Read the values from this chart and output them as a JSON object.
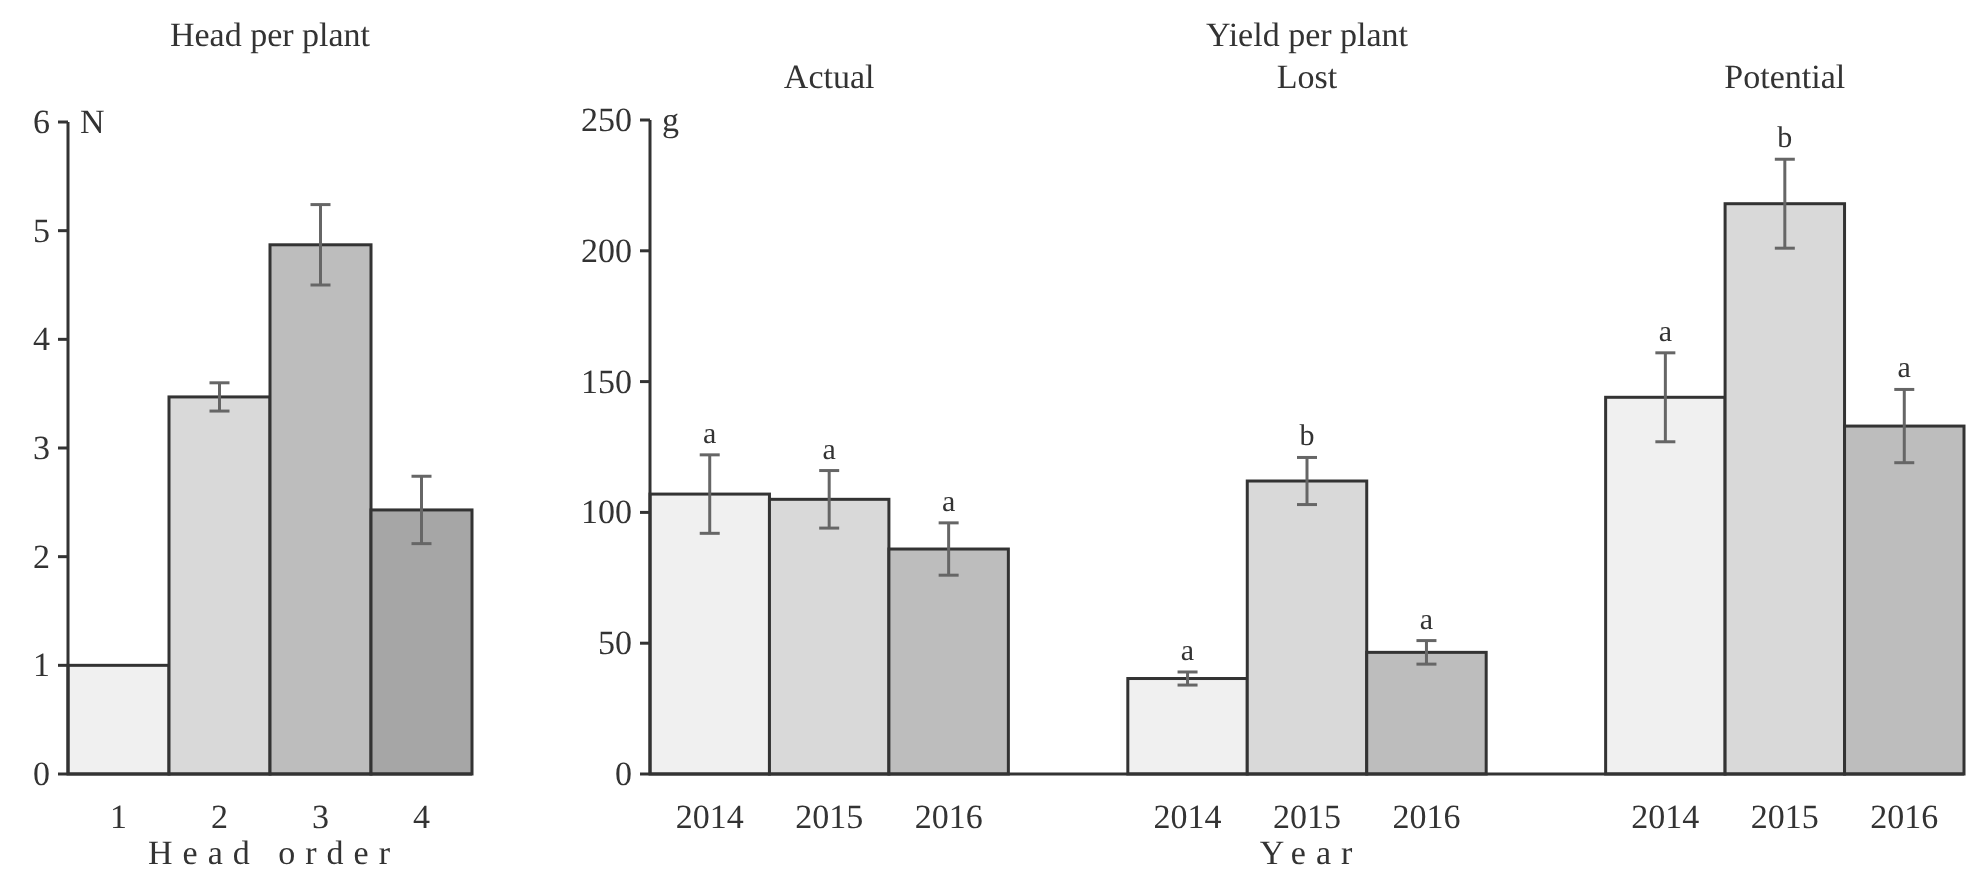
{
  "chart_data": [
    {
      "type": "bar",
      "title": "Head per plant",
      "xlabel": "Head order",
      "ylabel": "N",
      "categories": [
        "1",
        "2",
        "3",
        "4"
      ],
      "values": [
        1,
        3.47,
        4.87,
        2.43
      ],
      "errors": [
        null,
        0.13,
        0.37,
        0.31
      ],
      "colors": [
        "#f0f0f0",
        "#d9d9d9",
        "#bdbdbd",
        "#a6a6a6"
      ],
      "ylim": [
        0,
        6
      ],
      "yticks": [
        0,
        1,
        2,
        3,
        4,
        5,
        6
      ]
    },
    {
      "type": "bar",
      "title": "Yield per plant",
      "xlabel": "Year",
      "ylabel": "g",
      "categories": [
        "2014",
        "2015",
        "2016",
        null,
        "2014",
        "2015",
        "2016",
        null,
        "2014",
        "2015",
        "2016"
      ],
      "values": [
        107,
        105,
        86,
        null,
        36.5,
        112,
        46.5,
        null,
        144,
        218,
        133
      ],
      "errors": [
        15,
        11,
        10,
        null,
        2.5,
        9,
        4.5,
        null,
        17,
        17,
        14
      ],
      "colors": [
        "#f0f0f0",
        "#d9d9d9",
        "#bdbdbd",
        null,
        "#f0f0f0",
        "#d9d9d9",
        "#bdbdbd",
        null,
        "#f0f0f0",
        "#d9d9d9",
        "#bdbdbd"
      ],
      "value_labels": [
        "a",
        "a",
        "a",
        null,
        "a",
        "b",
        "a",
        null,
        "a",
        "b",
        "a"
      ],
      "annotations": [
        "Actual",
        "Lost",
        "Potential"
      ],
      "ylim": [
        0,
        250
      ],
      "yticks": [
        0,
        50,
        100,
        150,
        200,
        250
      ]
    }
  ]
}
